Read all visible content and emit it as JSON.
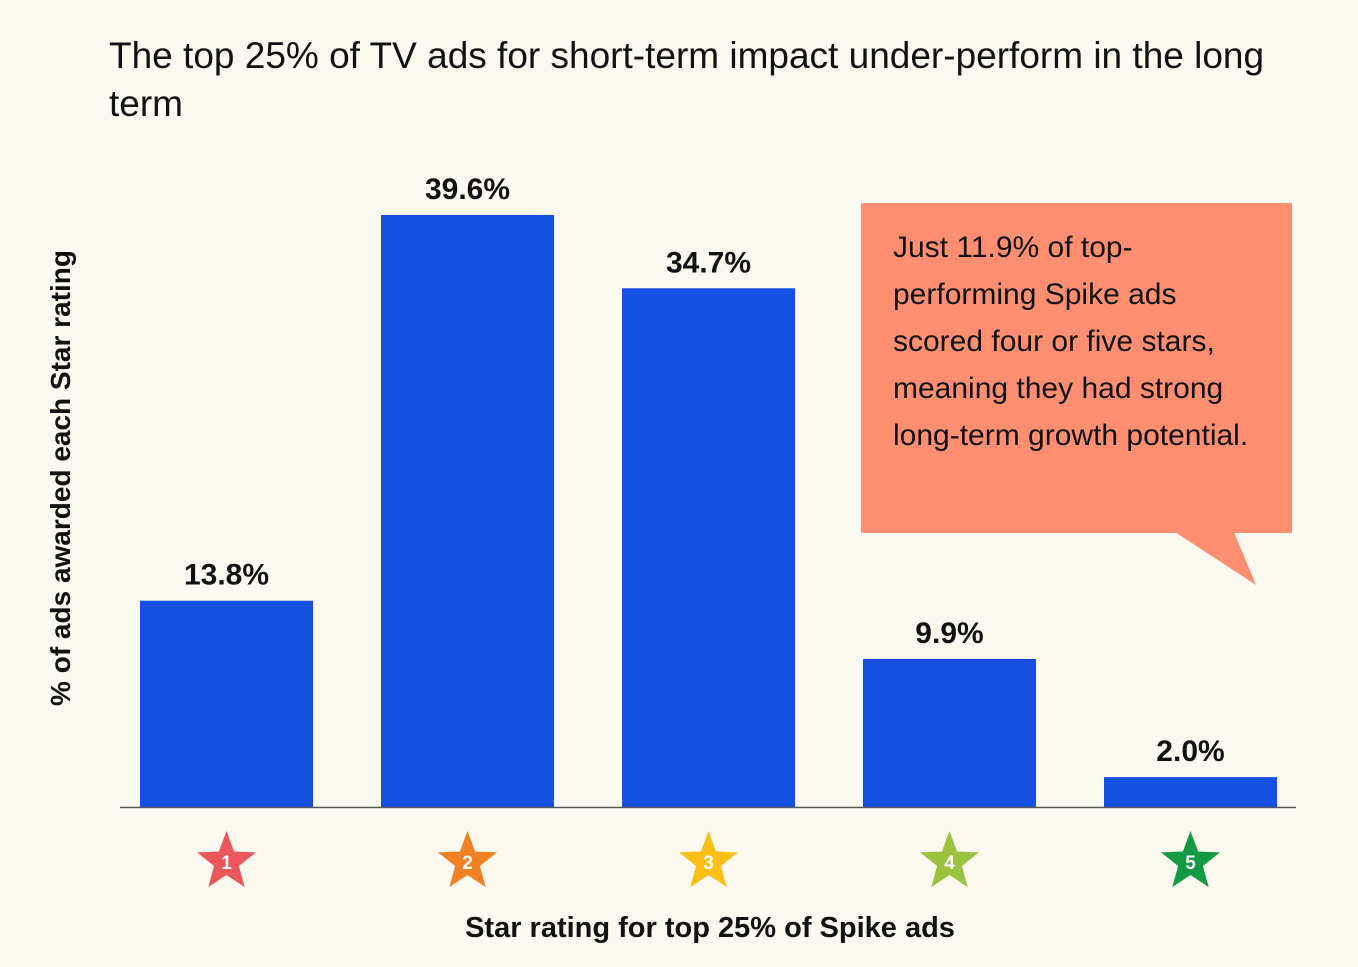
{
  "chart_data": {
    "type": "bar",
    "title": "The top 25% of TV ads for short-term impact under-perform in the long term",
    "xlabel": "Star rating for top 25% of Spike ads",
    "ylabel": "% of ads awarded each Star rating",
    "categories": [
      "1",
      "2",
      "3",
      "4",
      "5"
    ],
    "values": [
      13.8,
      39.6,
      34.7,
      9.9,
      2.0
    ],
    "data_labels": [
      "13.8%",
      "39.6%",
      "34.7%",
      "9.9%",
      "2.0%"
    ],
    "ylim": [
      0,
      40
    ],
    "grid": false,
    "bar_color": "#1550E0",
    "category_icon": "star-icon",
    "star_colors": [
      "#EC575B",
      "#F08224",
      "#FBBF16",
      "#9AC33F",
      "#139A43"
    ],
    "annotation": {
      "text": "Just 11.9% of top-performing Spike ads scored four or five stars, meaning they had strong long-term growth potential.",
      "color": "#FF8F70"
    }
  }
}
